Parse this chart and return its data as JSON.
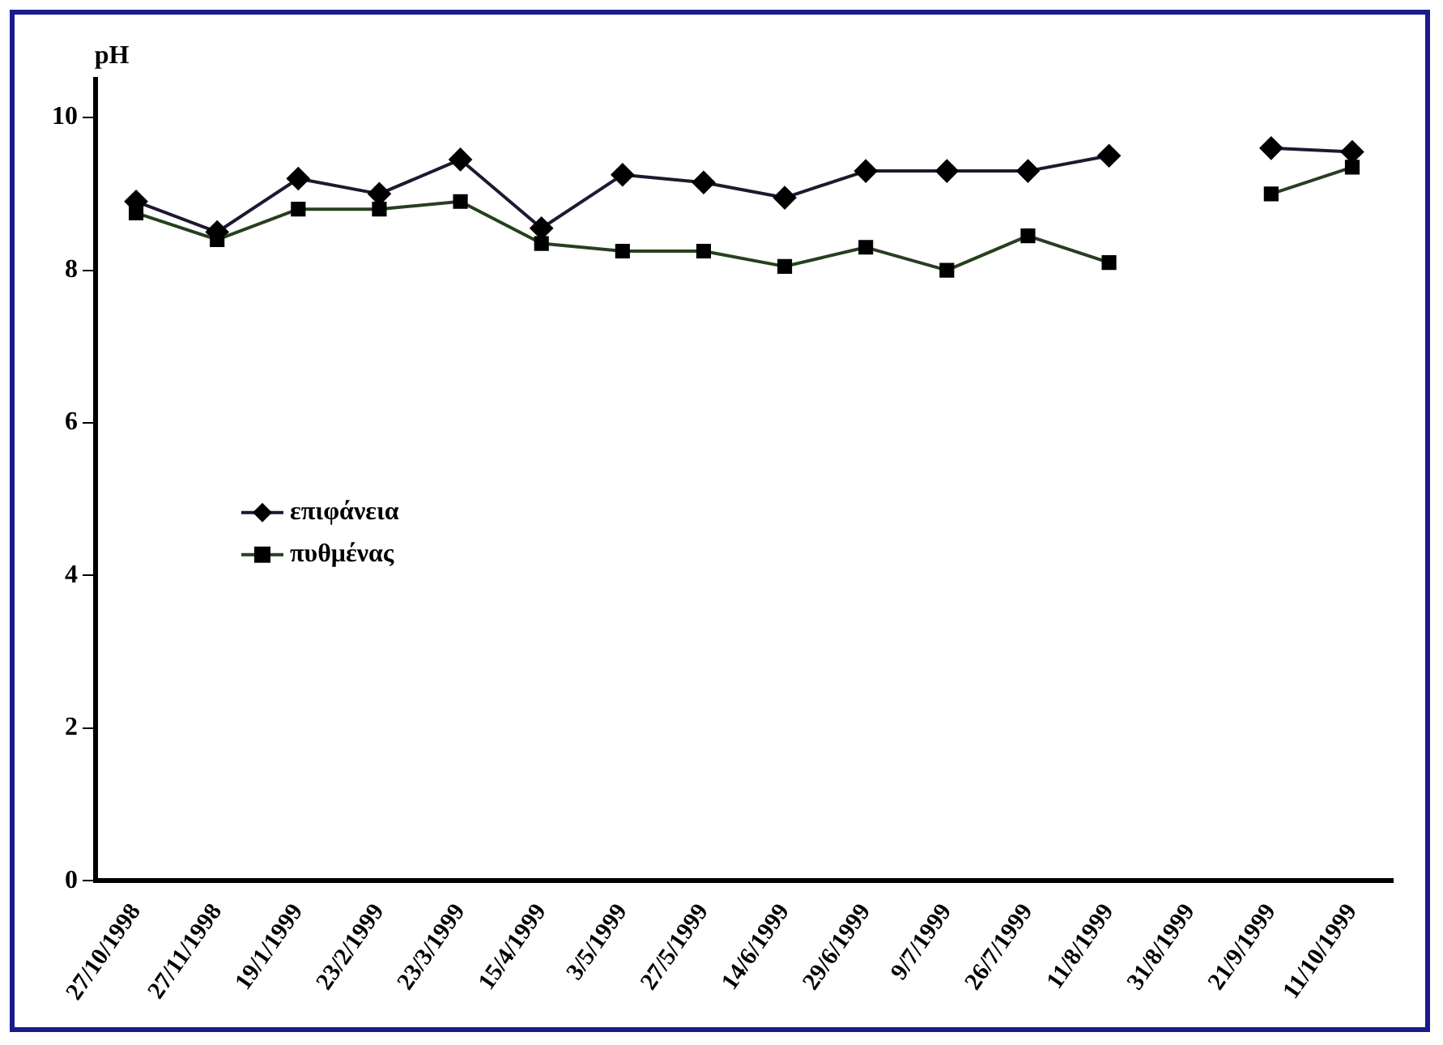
{
  "chart_data": {
    "type": "line",
    "ylabel": "pH",
    "categories": [
      "27/10/1998",
      "27/11/1998",
      "19/1/1999",
      "23/2/1999",
      "23/3/1999",
      "15/4/1999",
      "3/5/1999",
      "27/5/1999",
      "14/6/1999",
      "29/6/1999",
      "9/7/1999",
      "26/7/1999",
      "11/8/1999",
      "31/8/1999",
      "21/9/1999",
      "11/10/1999"
    ],
    "series": [
      {
        "name": "επιφάνεια",
        "color": "#1e1830",
        "marker": "diamond",
        "values": [
          8.9,
          8.5,
          9.2,
          9.0,
          9.45,
          8.55,
          9.25,
          9.15,
          8.95,
          9.3,
          9.3,
          9.3,
          9.5,
          null,
          9.6,
          9.55
        ]
      },
      {
        "name": "πυθμένας",
        "color": "#26401f",
        "marker": "square",
        "values": [
          8.75,
          8.4,
          8.8,
          8.8,
          8.9,
          8.35,
          8.25,
          8.25,
          8.05,
          8.3,
          8.0,
          8.45,
          8.1,
          null,
          9.0,
          9.35
        ]
      }
    ],
    "ylim": [
      0,
      10.5
    ],
    "yticks": [
      0,
      2,
      4,
      6,
      8,
      10
    ],
    "grid": false,
    "legend": "left",
    "line_style": "solid"
  }
}
